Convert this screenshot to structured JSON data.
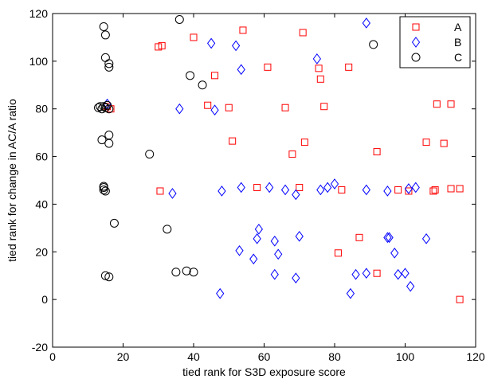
{
  "chart_data": {
    "type": "scatter",
    "xlabel": "tied rank for S3D exposure score",
    "ylabel": "tied rank for change in AC/A ratio",
    "xlim": [
      0,
      120
    ],
    "ylim": [
      -20,
      120
    ],
    "xticks": [
      "0",
      "20",
      "40",
      "60",
      "80",
      "100",
      "120"
    ],
    "yticks": [
      "-20",
      "0",
      "20",
      "40",
      "60",
      "80",
      "100",
      "120"
    ],
    "grid": false,
    "legend_position": "top-right",
    "series": [
      {
        "name": "A",
        "marker": "square",
        "color": "#ff0000",
        "points": [
          [
            15.5,
            81
          ],
          [
            16.5,
            80
          ],
          [
            30,
            106
          ],
          [
            31,
            106.5
          ],
          [
            40,
            110
          ],
          [
            44,
            81.5
          ],
          [
            46,
            94
          ],
          [
            54,
            113
          ],
          [
            50,
            80.5
          ],
          [
            51,
            66.5
          ],
          [
            61,
            97.5
          ],
          [
            66,
            80.5
          ],
          [
            68,
            61
          ],
          [
            71,
            112
          ],
          [
            71.5,
            66
          ],
          [
            75.5,
            97
          ],
          [
            76,
            92.5
          ],
          [
            77,
            81
          ],
          [
            84,
            97.5
          ],
          [
            92,
            62
          ],
          [
            106,
            66
          ],
          [
            109,
            82
          ],
          [
            113,
            82
          ],
          [
            111,
            65.5
          ],
          [
            30.5,
            45.5
          ],
          [
            58,
            47
          ],
          [
            70,
            47
          ],
          [
            82,
            46
          ],
          [
            98,
            46
          ],
          [
            101,
            45.5
          ],
          [
            108,
            45.5
          ],
          [
            108.5,
            46
          ],
          [
            113,
            46.5
          ],
          [
            115.5,
            46.5
          ],
          [
            81,
            19.5
          ],
          [
            87,
            26
          ],
          [
            92,
            11
          ],
          [
            115.5,
            0
          ]
        ]
      },
      {
        "name": "B",
        "marker": "diamond",
        "color": "#0000ff",
        "points": [
          [
            15.5,
            82
          ],
          [
            36,
            80
          ],
          [
            45,
            107.5
          ],
          [
            46,
            79.5
          ],
          [
            52,
            106.5
          ],
          [
            53.5,
            96.5
          ],
          [
            75,
            101
          ],
          [
            89,
            116
          ],
          [
            34,
            44.5
          ],
          [
            48,
            45.5
          ],
          [
            53.5,
            47
          ],
          [
            61.5,
            47
          ],
          [
            66,
            46
          ],
          [
            69,
            44
          ],
          [
            76,
            46
          ],
          [
            78,
            47
          ],
          [
            80,
            48.5
          ],
          [
            89,
            46
          ],
          [
            95,
            45.5
          ],
          [
            101,
            46.5
          ],
          [
            103,
            47
          ],
          [
            58.5,
            29.5
          ],
          [
            58,
            25.5
          ],
          [
            63,
            24.5
          ],
          [
            64,
            19
          ],
          [
            70,
            26.5
          ],
          [
            95,
            26
          ],
          [
            95.5,
            26
          ],
          [
            97,
            19.5
          ],
          [
            106,
            25.5
          ],
          [
            53,
            20.5
          ],
          [
            57,
            17
          ],
          [
            63,
            10.5
          ],
          [
            69,
            9
          ],
          [
            86,
            10.5
          ],
          [
            89,
            11
          ],
          [
            98,
            10.5
          ],
          [
            100,
            11
          ],
          [
            101.5,
            5.5
          ],
          [
            47.5,
            2.5
          ],
          [
            84.5,
            2.5
          ]
        ]
      },
      {
        "name": "C",
        "marker": "circle",
        "color": "#000000",
        "points": [
          [
            14.5,
            114.5
          ],
          [
            15,
            111
          ],
          [
            15,
            101.5
          ],
          [
            16,
            99
          ],
          [
            36,
            117.5
          ],
          [
            39,
            94
          ],
          [
            42.5,
            90
          ],
          [
            16,
            97.5
          ],
          [
            91,
            107
          ],
          [
            13,
            80.5
          ],
          [
            13.5,
            81
          ],
          [
            14,
            80
          ],
          [
            14.5,
            81
          ],
          [
            15,
            80.5
          ],
          [
            15.5,
            81.5
          ],
          [
            16,
            80
          ],
          [
            14,
            67
          ],
          [
            16,
            69
          ],
          [
            16,
            65.5
          ],
          [
            27.5,
            61
          ],
          [
            14.5,
            47.5
          ],
          [
            14.5,
            46
          ],
          [
            15,
            45.5
          ],
          [
            14.5,
            47
          ],
          [
            17.5,
            32
          ],
          [
            32.5,
            29.5
          ],
          [
            35,
            11.5
          ],
          [
            38,
            12
          ],
          [
            40,
            11.5
          ],
          [
            15,
            10
          ],
          [
            16,
            9.5
          ]
        ]
      }
    ]
  }
}
